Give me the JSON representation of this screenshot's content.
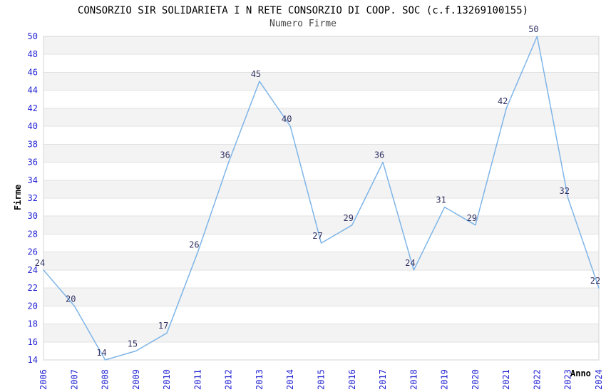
{
  "chart_data": {
    "type": "line",
    "title": "CONSORZIO SIR SOLIDARIETA I N RETE CONSORZIO DI COOP. SOC (c.f.13269100155)",
    "subtitle": "Numero Firme",
    "xlabel": "Anno",
    "ylabel": "Firme",
    "categories": [
      "2006",
      "2007",
      "2008",
      "2009",
      "2010",
      "2011",
      "2012",
      "2013",
      "2014",
      "2015",
      "2016",
      "2017",
      "2018",
      "2019",
      "2020",
      "2021",
      "2022",
      "2023",
      "2024"
    ],
    "values": [
      24,
      20,
      14,
      15,
      17,
      26,
      36,
      45,
      40,
      27,
      29,
      36,
      24,
      31,
      29,
      42,
      50,
      32,
      22
    ],
    "ylim": [
      14,
      50
    ],
    "ytick_step": 2,
    "grid": "horizontal-bands-alternating",
    "legend": "none",
    "data_labels": true
  },
  "colors": {
    "line": "#7eb5e8",
    "tick_label": "#2323d3",
    "data_label": "#333366",
    "title": "#000000",
    "subtitle": "#444444",
    "axis_label": "#000000",
    "band_gray": "#f3f3f3",
    "band_white": "#ffffff",
    "grid_line": "#e0e0e0",
    "plot_border": "#d4d4d4",
    "background": "#ffffff"
  }
}
